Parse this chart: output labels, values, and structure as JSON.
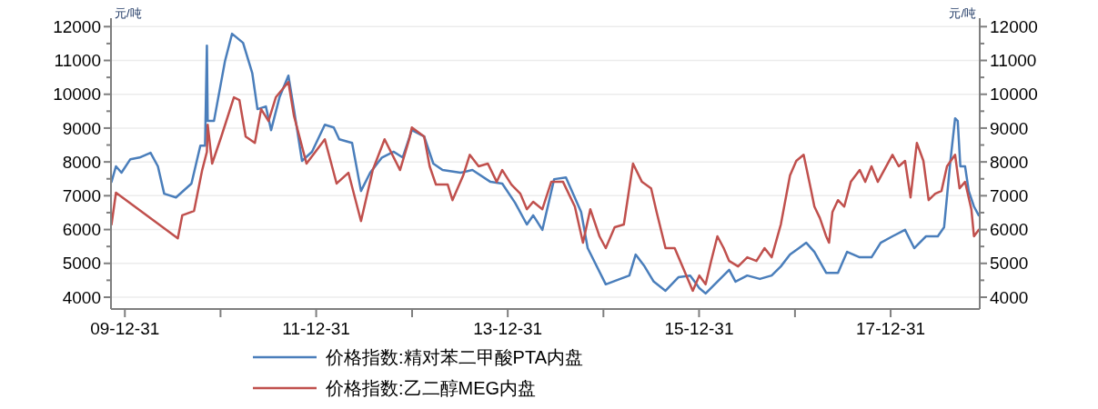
{
  "chart_data": {
    "type": "line",
    "ylabel": "元/吨",
    "y2label": "元/吨",
    "xlim": [
      "2009-11-08",
      "2018-12-06"
    ],
    "xticks": [
      {
        "value": "2009-12-31",
        "label": "09-12-31"
      },
      {
        "value": "2010-12-31",
        "label": null
      },
      {
        "value": "2011-12-31",
        "label": "11-12-31"
      },
      {
        "value": "2012-12-31",
        "label": null
      },
      {
        "value": "2013-12-31",
        "label": "13-12-31"
      },
      {
        "value": "2014-12-31",
        "label": null
      },
      {
        "value": "2015-12-31",
        "label": "15-12-31"
      },
      {
        "value": "2016-12-31",
        "label": null
      },
      {
        "value": "2017-12-31",
        "label": "17-12-31"
      }
    ],
    "ylim": [
      3650,
      12250
    ],
    "yticks": [
      4000,
      {
        "value": 4500,
        "label": null
      },
      5000,
      {
        "value": 5500,
        "label": null
      },
      6000,
      {
        "value": 6500,
        "label": null
      },
      7000,
      {
        "value": 7500,
        "label": null
      },
      8000,
      {
        "value": 8500,
        "label": null
      },
      9000,
      {
        "value": 9500,
        "label": null
      },
      10000,
      {
        "value": 10500,
        "label": null
      },
      11000,
      {
        "value": 11500,
        "label": null
      },
      12000
    ],
    "y2lim": [
      3650,
      12250
    ],
    "y2ticks": [
      4000,
      {
        "value": 4500,
        "label": null
      },
      5000,
      {
        "value": 5500,
        "label": null
      },
      6000,
      {
        "value": 6500,
        "label": null
      },
      7000,
      {
        "value": 7500,
        "label": null
      },
      8000,
      {
        "value": 8500,
        "label": null
      },
      9000,
      {
        "value": 9500,
        "label": null
      },
      10000,
      {
        "value": 10500,
        "label": null
      },
      11000,
      {
        "value": 11500,
        "label": null
      },
      12000
    ],
    "grid": "y",
    "legend": "bottom",
    "marker": "none",
    "line_style": "solid",
    "series": [
      {
        "name": "价格指数:精对苯二甲酸PTA内盘",
        "color": "#4a7ebb",
        "x": [
          "2009-11-10",
          "2009-11-27",
          "2009-12-18",
          "2010-01-21",
          "2010-02-25",
          "2010-04-08",
          "2010-05-06",
          "2010-05-30",
          "2010-07-14",
          "2010-09-11",
          "2010-10-15",
          "2010-11-02",
          "2010-11-09",
          "2010-11-12",
          "2010-12-06",
          "2011-01-17",
          "2011-02-13",
          "2011-03-27",
          "2011-05-01",
          "2011-05-21",
          "2011-06-22",
          "2011-07-12",
          "2011-08-13",
          "2011-09-16",
          "2011-10-07",
          "2011-11-07",
          "2011-12-15",
          "2012-02-02",
          "2012-03-07",
          "2012-03-28",
          "2012-05-16",
          "2012-06-19",
          "2012-07-24",
          "2012-09-07",
          "2012-10-22",
          "2012-11-25",
          "2012-12-30",
          "2013-02-15",
          "2013-03-22",
          "2013-04-26",
          "2013-07-04",
          "2013-08-18",
          "2013-10-26",
          "2013-12-10",
          "2014-01-28",
          "2014-03-14",
          "2014-04-07",
          "2014-05-12",
          "2014-06-26",
          "2014-08-10",
          "2014-10-07",
          "2014-11-01",
          "2015-01-09",
          "2015-03-05",
          "2015-04-09",
          "2015-05-03",
          "2015-06-06",
          "2015-07-11",
          "2015-08-25",
          "2015-10-13",
          "2015-11-27",
          "2016-01-01",
          "2016-01-25",
          "2016-03-10",
          "2016-04-24",
          "2016-05-18",
          "2016-07-02",
          "2016-08-19",
          "2016-10-03",
          "2016-11-07",
          "2016-12-12",
          "2017-01-15",
          "2017-02-12",
          "2017-03-15",
          "2017-04-29",
          "2017-06-13",
          "2017-07-18",
          "2017-09-04",
          "2017-10-19",
          "2017-11-23",
          "2018-01-07",
          "2018-02-24",
          "2018-03-31",
          "2018-05-15",
          "2018-06-29",
          "2018-07-23",
          "2018-08-16",
          "2018-09-03",
          "2018-09-13",
          "2018-09-23",
          "2018-10-11",
          "2018-10-25",
          "2018-11-14",
          "2018-12-02"
        ],
        "values": [
          7410,
          7870,
          7680,
          8080,
          8130,
          8270,
          7870,
          7060,
          6950,
          7360,
          8480,
          8480,
          11440,
          9210,
          9210,
          10980,
          11790,
          11520,
          10630,
          9560,
          9640,
          8940,
          9910,
          10550,
          9560,
          8030,
          8300,
          9100,
          9020,
          8670,
          8560,
          7140,
          7680,
          8130,
          8300,
          8130,
          8940,
          8750,
          7950,
          7760,
          7680,
          7760,
          7410,
          7360,
          6790,
          6150,
          6420,
          5990,
          7490,
          7540,
          6520,
          5450,
          4380,
          4540,
          4640,
          5260,
          4910,
          4460,
          4190,
          4590,
          4640,
          4270,
          4110,
          4460,
          4810,
          4460,
          4640,
          4540,
          4640,
          4910,
          5260,
          5450,
          5610,
          5340,
          4720,
          4720,
          5340,
          5180,
          5180,
          5610,
          5800,
          5990,
          5450,
          5800,
          5800,
          6070,
          8030,
          9290,
          9210,
          7870,
          7870,
          7140,
          6680,
          6420
        ]
      },
      {
        "name": "价格指数:乙二醇MEG内盘",
        "color": "#c0504d",
        "x": [
          "2009-11-10",
          "2009-11-27",
          "2010-07-21",
          "2010-08-07",
          "2010-09-21",
          "2010-10-22",
          "2010-11-09",
          "2010-11-12",
          "2010-11-29",
          "2011-01-03",
          "2011-02-20",
          "2011-03-13",
          "2011-04-06",
          "2011-05-11",
          "2011-06-04",
          "2011-07-02",
          "2011-07-30",
          "2011-09-16",
          "2011-10-07",
          "2011-11-24",
          "2012-02-02",
          "2012-03-18",
          "2012-05-02",
          "2012-06-19",
          "2012-08-03",
          "2012-09-17",
          "2012-11-15",
          "2012-12-20",
          "2012-12-30",
          "2013-02-15",
          "2013-03-08",
          "2013-04-01",
          "2013-05-16",
          "2013-06-03",
          "2013-07-14",
          "2013-08-08",
          "2013-09-11",
          "2013-10-16",
          "2013-11-19",
          "2013-12-10",
          "2014-01-14",
          "2014-02-17",
          "2014-03-14",
          "2014-04-07",
          "2014-05-12",
          "2014-06-15",
          "2014-07-30",
          "2014-09-13",
          "2014-10-14",
          "2014-11-11",
          "2014-12-16",
          "2015-01-09",
          "2015-02-12",
          "2015-03-19",
          "2015-04-23",
          "2015-05-27",
          "2015-07-01",
          "2015-07-22",
          "2015-08-25",
          "2015-09-29",
          "2015-11-03",
          "2015-12-07",
          "2016-01-01",
          "2016-01-25",
          "2016-02-15",
          "2016-03-10",
          "2016-04-03",
          "2016-04-24",
          "2016-05-28",
          "2016-07-02",
          "2016-08-06",
          "2016-09-06",
          "2016-10-03",
          "2016-11-07",
          "2016-12-12",
          "2017-01-05",
          "2017-02-02",
          "2017-03-01",
          "2017-03-15",
          "2017-04-05",
          "2017-04-29",
          "2017-05-10",
          "2017-05-23",
          "2017-06-13",
          "2017-07-07",
          "2017-08-01",
          "2017-09-04",
          "2017-09-25",
          "2017-10-19",
          "2017-11-12",
          "2018-01-07",
          "2018-01-31",
          "2018-02-24",
          "2018-03-17",
          "2018-04-10",
          "2018-05-05",
          "2018-05-25",
          "2018-06-19",
          "2018-07-13",
          "2018-08-03",
          "2018-09-03",
          "2018-09-20",
          "2018-10-11",
          "2018-11-04",
          "2018-11-14",
          "2018-12-02"
        ],
        "values": [
          6150,
          7090,
          5740,
          6420,
          6550,
          7760,
          8300,
          9100,
          7950,
          8750,
          9910,
          9830,
          8750,
          8560,
          9560,
          9210,
          9910,
          10360,
          9370,
          7950,
          8670,
          7360,
          7680,
          6250,
          7760,
          8670,
          7760,
          8670,
          9020,
          8750,
          7870,
          7330,
          7330,
          6870,
          7600,
          8210,
          7870,
          7950,
          7410,
          7760,
          7330,
          7060,
          6600,
          6820,
          6600,
          7410,
          7410,
          6680,
          5610,
          6600,
          5800,
          5450,
          6070,
          6150,
          7950,
          7410,
          7220,
          6520,
          5450,
          5450,
          4810,
          4190,
          4640,
          4380,
          5070,
          5800,
          5450,
          5070,
          4910,
          5180,
          5070,
          5450,
          5180,
          6150,
          7600,
          8030,
          8210,
          7220,
          6680,
          6340,
          5800,
          5610,
          6520,
          6870,
          6680,
          7410,
          7760,
          7410,
          7870,
          7410,
          8210,
          7870,
          8030,
          6950,
          8560,
          8030,
          6870,
          7060,
          7140,
          7870,
          8210,
          7220,
          7410,
          6600,
          5800,
          5990
        ]
      }
    ]
  }
}
